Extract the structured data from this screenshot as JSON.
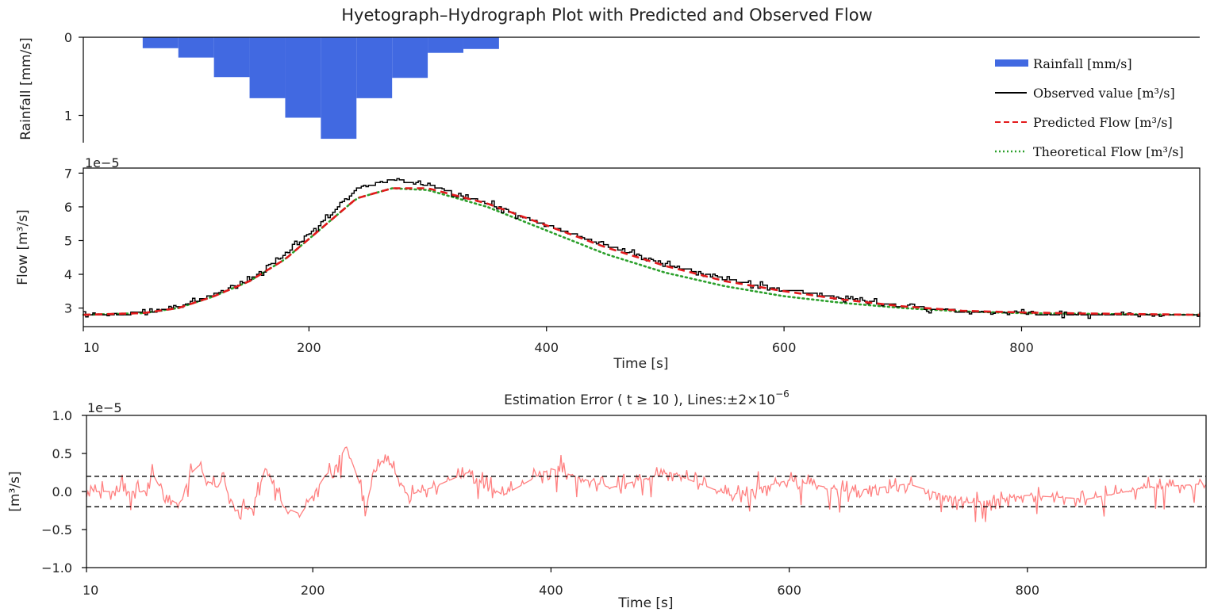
{
  "figure": {
    "title": "Hyetograph–Hydrograph Plot with Predicted and Observed Flow"
  },
  "colors": {
    "rainfall": "#4169e1",
    "observed": "#000000",
    "predicted": "#e31a1c",
    "theoretical": "#2ca02c",
    "error": "#ff8080",
    "threshold": "#000000"
  },
  "chart_data": [
    {
      "id": "rainfall",
      "type": "bar",
      "ylabel": "Rainfall [mm/s]",
      "ylim": [
        0,
        1.35
      ],
      "y_inverted": true,
      "yticks": [
        0,
        1
      ],
      "xlim": [
        10,
        950
      ],
      "bars": [
        {
          "x0": 60,
          "x1": 90,
          "value": 0.14
        },
        {
          "x0": 90,
          "x1": 120,
          "value": 0.26
        },
        {
          "x0": 120,
          "x1": 150,
          "value": 0.51
        },
        {
          "x0": 150,
          "x1": 180,
          "value": 0.78
        },
        {
          "x0": 180,
          "x1": 210,
          "value": 1.03
        },
        {
          "x0": 210,
          "x1": 240,
          "value": 1.3
        },
        {
          "x0": 240,
          "x1": 270,
          "value": 0.78
        },
        {
          "x0": 270,
          "x1": 300,
          "value": 0.52
        },
        {
          "x0": 300,
          "x1": 330,
          "value": 0.2
        },
        {
          "x0": 330,
          "x1": 360,
          "value": 0.15
        }
      ]
    },
    {
      "id": "flow",
      "type": "line",
      "ylabel": "Flow [m³/s]",
      "xlabel": "Time [s]",
      "y_offset_label": "1e−5",
      "xlim": [
        10,
        950
      ],
      "ylim": [
        2.45,
        7.15
      ],
      "yticks": [
        3,
        4,
        5,
        6,
        7
      ],
      "xticks": [
        10,
        200,
        400,
        600,
        800
      ],
      "x_curve_samples": [
        10,
        60,
        90,
        120,
        150,
        180,
        210,
        240,
        270,
        300,
        350,
        400,
        450,
        500,
        550,
        600,
        650,
        700,
        750,
        800,
        850,
        900,
        950
      ],
      "series": [
        {
          "name": "Observed value [m³/s]",
          "style": "solid",
          "values": [
            2.8,
            2.85,
            3.05,
            3.4,
            3.85,
            4.6,
            5.5,
            6.55,
            6.8,
            6.65,
            6.1,
            5.45,
            4.85,
            4.3,
            3.85,
            3.55,
            3.3,
            3.05,
            2.9,
            2.85,
            2.8,
            2.8,
            2.78
          ]
        },
        {
          "name": "Predicted Flow [m³/s]",
          "style": "dashed",
          "values": [
            2.8,
            2.85,
            3.0,
            3.35,
            3.8,
            4.45,
            5.35,
            6.25,
            6.55,
            6.55,
            6.1,
            5.45,
            4.8,
            4.25,
            3.8,
            3.5,
            3.25,
            3.05,
            2.92,
            2.87,
            2.84,
            2.82,
            2.8
          ]
        },
        {
          "name": "Theoretical Flow [m³/s]",
          "style": "dotted",
          "values": [
            2.8,
            2.85,
            3.0,
            3.35,
            3.8,
            4.45,
            5.35,
            6.25,
            6.55,
            6.5,
            6.0,
            5.3,
            4.6,
            4.05,
            3.65,
            3.35,
            3.15,
            3.0,
            2.9,
            2.85,
            2.83,
            2.81,
            2.8
          ]
        }
      ],
      "legend": {
        "placement": "top-right",
        "entries": [
          {
            "label": "Rainfall [mm/s]",
            "swatch": "bar",
            "color": "#4169e1"
          },
          {
            "label": "Observed value [m³/s]",
            "swatch": "solid",
            "color": "#000000"
          },
          {
            "label": "Predicted Flow [m³/s]",
            "swatch": "dashed",
            "color": "#e31a1c"
          },
          {
            "label": "Theoretical Flow [m³/s]",
            "swatch": "dotted",
            "color": "#2ca02c"
          }
        ]
      }
    },
    {
      "id": "error",
      "type": "line",
      "title_prefix": "Estimation Error ( t ≥ 10 ), Lines:±2×10",
      "title_exponent": "−6",
      "ylabel": "[m³/s]",
      "xlabel": "Time [s]",
      "y_offset_label": "1e−5",
      "xlim": [
        10,
        950
      ],
      "ylim": [
        -1.0,
        1.0
      ],
      "yticks": [
        -1.0,
        -0.5,
        0.0,
        0.5,
        1.0
      ],
      "ytick_labels": [
        "−1.0",
        "−0.5",
        "0.0",
        "0.5",
        "1.0"
      ],
      "xticks": [
        10,
        200,
        400,
        600,
        800
      ],
      "threshold_lines": [
        0.2,
        -0.2
      ],
      "series": [
        {
          "name": "error",
          "style": "solid",
          "x": [
            10,
            60,
            65,
            70,
            80,
            85,
            90,
            95,
            105,
            110,
            120,
            125,
            135,
            150,
            160,
            165,
            175,
            190,
            200,
            210,
            220,
            228,
            235,
            245,
            255,
            265,
            280,
            300,
            330,
            360,
            400,
            450,
            500,
            550,
            600,
            650,
            700,
            750,
            800,
            850,
            900,
            950
          ],
          "values": [
            0.0,
            0.0,
            0.25,
            0.1,
            -0.1,
            -0.15,
            -0.15,
            0.2,
            0.35,
            0.15,
            0.05,
            0.2,
            -0.25,
            -0.2,
            0.3,
            0.25,
            -0.2,
            -0.3,
            -0.05,
            0.2,
            0.35,
            0.6,
            0.3,
            -0.15,
            0.4,
            0.35,
            -0.05,
            0.05,
            0.25,
            -0.05,
            0.3,
            0.05,
            0.25,
            -0.05,
            0.15,
            0.0,
            0.1,
            -0.15,
            -0.05,
            -0.1,
            0.05,
            0.1
          ]
        }
      ]
    }
  ]
}
